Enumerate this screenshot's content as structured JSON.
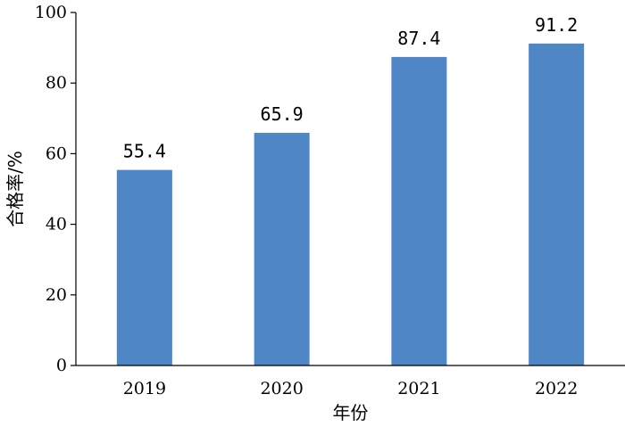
{
  "chart_data": {
    "type": "bar",
    "categories": [
      "2019",
      "2020",
      "2021",
      "2022"
    ],
    "values": [
      55.4,
      65.9,
      87.4,
      91.2
    ],
    "value_labels": [
      "55.4",
      "65.9",
      "87.4",
      "91.2"
    ],
    "title": "",
    "xlabel": "年份",
    "ylabel": "合格率/%",
    "ylim": [
      0,
      100
    ],
    "yticks": [
      0,
      20,
      40,
      60,
      80,
      100
    ],
    "grid": false,
    "legend": "none",
    "bar_color": "#4f86c6"
  }
}
